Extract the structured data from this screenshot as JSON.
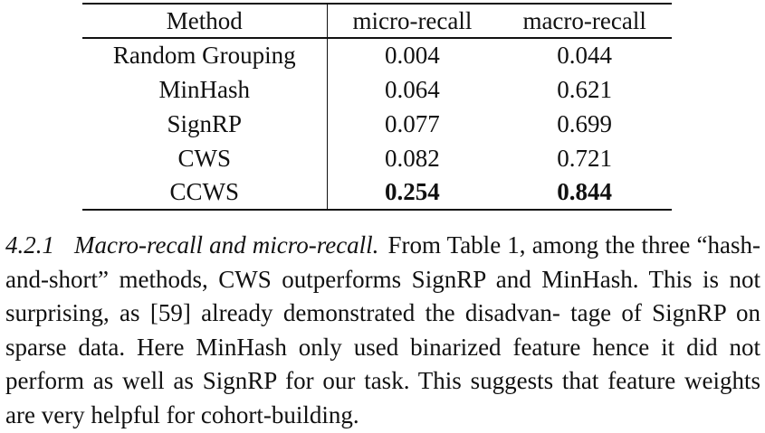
{
  "table": {
    "headers": [
      "Method",
      "micro-recall",
      "macro-recall"
    ],
    "rows": [
      {
        "method": "Random Grouping",
        "micro": "0.004",
        "macro": "0.044"
      },
      {
        "method": "MinHash",
        "micro": "0.064",
        "macro": "0.621"
      },
      {
        "method": "SignRP",
        "micro": "0.077",
        "macro": "0.699"
      },
      {
        "method": "CWS",
        "micro": "0.082",
        "macro": "0.721"
      },
      {
        "method": "CCWS",
        "micro": "0.254",
        "macro": "0.844"
      }
    ]
  },
  "section": {
    "number": "4.2.1",
    "title": "Macro-recall and micro-recall.",
    "body": "From Table 1, among the three “hash-and-short” methods, CWS outperforms SignRP and MinHash. This is not surprising, as [59] already demonstrated the disadvan- tage of SignRP on sparse data. Here MinHash only used binarized feature hence it did not perform as well as SignRP for our task. This suggests that feature weights are very helpful for cohort-building."
  }
}
